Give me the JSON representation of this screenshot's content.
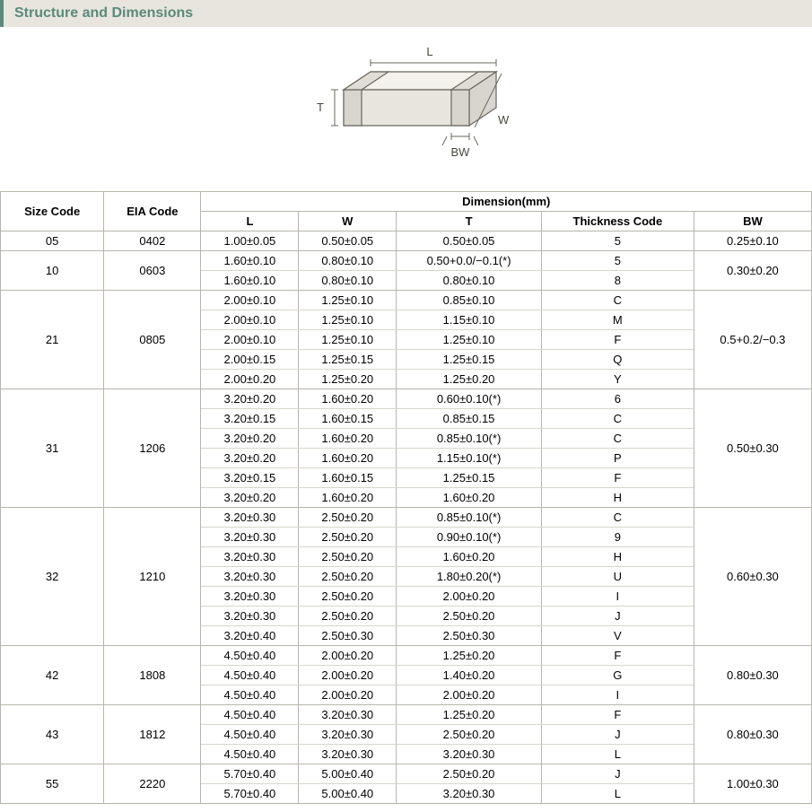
{
  "section_title": "Structure and Dimensions",
  "diagram": {
    "labels": {
      "L": "L",
      "W": "W",
      "T": "T",
      "BW": "BW"
    },
    "stroke": "#6a675f",
    "fill_light": "#f4f2ed",
    "fill_dark": "#d8d5ce",
    "fill_front": "#e8e5df"
  },
  "table": {
    "header_group": "Dimension(mm)",
    "columns": {
      "size_code": "Size Code",
      "eia_code": "EIA Code",
      "L": "L",
      "W": "W",
      "T": "T",
      "thickness_code": "Thickness  Code",
      "BW": "BW"
    },
    "groups": [
      {
        "size_code": "05",
        "eia_code": "0402",
        "bw": "0.25±0.10",
        "rows": [
          {
            "L": "1.00±0.05",
            "W": "0.50±0.05",
            "T": "0.50±0.05",
            "tc": "5"
          }
        ]
      },
      {
        "size_code": "10",
        "eia_code": "0603",
        "bw": "0.30±0.20",
        "rows": [
          {
            "L": "1.60±0.10",
            "W": "0.80±0.10",
            "T": "0.50+0.0/−0.1(*)",
            "tc": "5"
          },
          {
            "L": "1.60±0.10",
            "W": "0.80±0.10",
            "T": "0.80±0.10",
            "tc": "8"
          }
        ]
      },
      {
        "size_code": "21",
        "eia_code": "0805",
        "bw": "0.5+0.2/−0.3",
        "rows": [
          {
            "L": "2.00±0.10",
            "W": "1.25±0.10",
            "T": "0.85±0.10",
            "tc": "C"
          },
          {
            "L": "2.00±0.10",
            "W": "1.25±0.10",
            "T": "1.15±0.10",
            "tc": "M"
          },
          {
            "L": "2.00±0.10",
            "W": "1.25±0.10",
            "T": "1.25±0.10",
            "tc": "F"
          },
          {
            "L": "2.00±0.15",
            "W": "1.25±0.15",
            "T": "1.25±0.15",
            "tc": "Q"
          },
          {
            "L": "2.00±0.20",
            "W": "1.25±0.20",
            "T": "1.25±0.20",
            "tc": "Y"
          }
        ]
      },
      {
        "size_code": "31",
        "eia_code": "1206",
        "bw": "0.50±0.30",
        "rows": [
          {
            "L": "3.20±0.20",
            "W": "1.60±0.20",
            "T": "0.60±0.10(*)",
            "tc": "6"
          },
          {
            "L": "3.20±0.15",
            "W": "1.60±0.15",
            "T": "0.85±0.15",
            "tc": "C"
          },
          {
            "L": "3.20±0.20",
            "W": "1.60±0.20",
            "T": "0.85±0.10(*)",
            "tc": "C"
          },
          {
            "L": "3.20±0.20",
            "W": "1.60±0.20",
            "T": "1.15±0.10(*)",
            "tc": "P"
          },
          {
            "L": "3.20±0.15",
            "W": "1.60±0.15",
            "T": "1.25±0.15",
            "tc": "F"
          },
          {
            "L": "3.20±0.20",
            "W": "1.60±0.20",
            "T": "1.60±0.20",
            "tc": "H"
          }
        ]
      },
      {
        "size_code": "32",
        "eia_code": "1210",
        "bw": "0.60±0.30",
        "rows": [
          {
            "L": "3.20±0.30",
            "W": "2.50±0.20",
            "T": "0.85±0.10(*)",
            "tc": "C"
          },
          {
            "L": "3.20±0.30",
            "W": "2.50±0.20",
            "T": "0.90±0.10(*)",
            "tc": "9"
          },
          {
            "L": "3.20±0.30",
            "W": "2.50±0.20",
            "T": "1.60±0.20",
            "tc": "H"
          },
          {
            "L": "3.20±0.30",
            "W": "2.50±0.20",
            "T": "1.80±0.20(*)",
            "tc": "U"
          },
          {
            "L": "3.20±0.30",
            "W": "2.50±0.20",
            "T": "2.00±0.20",
            "tc": "I"
          },
          {
            "L": "3.20±0.30",
            "W": "2.50±0.20",
            "T": "2.50±0.20",
            "tc": "J"
          },
          {
            "L": "3.20±0.40",
            "W": "2.50±0.30",
            "T": "2.50±0.30",
            "tc": "V"
          }
        ]
      },
      {
        "size_code": "42",
        "eia_code": "1808",
        "bw": "0.80±0.30",
        "rows": [
          {
            "L": "4.50±0.40",
            "W": "2.00±0.20",
            "T": "1.25±0.20",
            "tc": "F"
          },
          {
            "L": "4.50±0.40",
            "W": "2.00±0.20",
            "T": "1.40±0.20",
            "tc": "G"
          },
          {
            "L": "4.50±0.40",
            "W": "2.00±0.20",
            "T": "2.00±0.20",
            "tc": "I"
          }
        ]
      },
      {
        "size_code": "43",
        "eia_code": "1812",
        "bw": "0.80±0.30",
        "rows": [
          {
            "L": "4.50±0.40",
            "W": "3.20±0.30",
            "T": "1.25±0.20",
            "tc": "F"
          },
          {
            "L": "4.50±0.40",
            "W": "3.20±0.30",
            "T": "2.50±0.20",
            "tc": "J"
          },
          {
            "L": "4.50±0.40",
            "W": "3.20±0.30",
            "T": "3.20±0.30",
            "tc": "L"
          }
        ]
      },
      {
        "size_code": "55",
        "eia_code": "2220",
        "bw": "1.00±0.30",
        "rows": [
          {
            "L": "5.70±0.40",
            "W": "5.00±0.40",
            "T": "2.50±0.20",
            "tc": "J"
          },
          {
            "L": "5.70±0.40",
            "W": "5.00±0.40",
            "T": "3.20±0.30",
            "tc": "L"
          }
        ]
      }
    ]
  },
  "style": {
    "border_color": "#b8b5ae",
    "thin_border_color": "#d8d5ce",
    "header_bg": "#e8e5df",
    "accent": "#5a8a7a",
    "font_size_table": 13,
    "font_size_header": 16
  }
}
